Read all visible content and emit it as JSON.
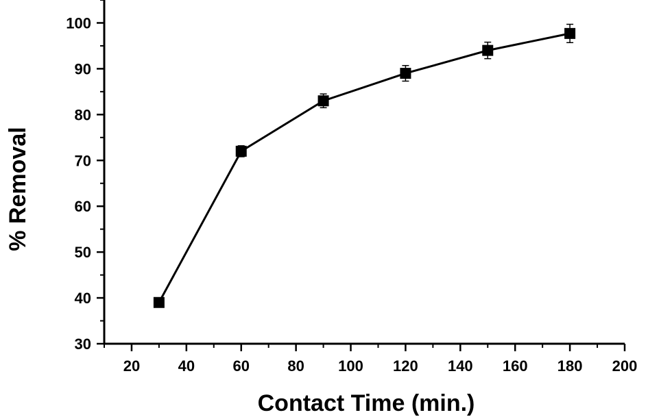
{
  "chart_data": {
    "type": "line",
    "title": "",
    "xlabel": "Contact Time (min.)",
    "ylabel": "% Removal",
    "xlim": [
      10,
      200
    ],
    "ylim": [
      30,
      105
    ],
    "x_ticks": [
      20,
      40,
      60,
      80,
      100,
      120,
      140,
      160,
      180,
      200
    ],
    "y_ticks": [
      30,
      40,
      50,
      60,
      70,
      80,
      90,
      100
    ],
    "x_tick_labels": [
      "20",
      "40",
      "60",
      "80",
      "100",
      "120",
      "140",
      "160",
      "180",
      "200"
    ],
    "y_tick_labels": [
      "30",
      "40",
      "50",
      "60",
      "70",
      "80",
      "90",
      "100"
    ],
    "grid": false,
    "legend": "none",
    "marker": "square",
    "color": "#000000",
    "series": [
      {
        "x": [
          30,
          60,
          90,
          120,
          150,
          180
        ],
        "y": [
          39,
          72,
          83,
          89,
          94,
          97.7
        ],
        "error": [
          0,
          1.2,
          1.5,
          1.7,
          1.8,
          2.0
        ]
      }
    ]
  }
}
